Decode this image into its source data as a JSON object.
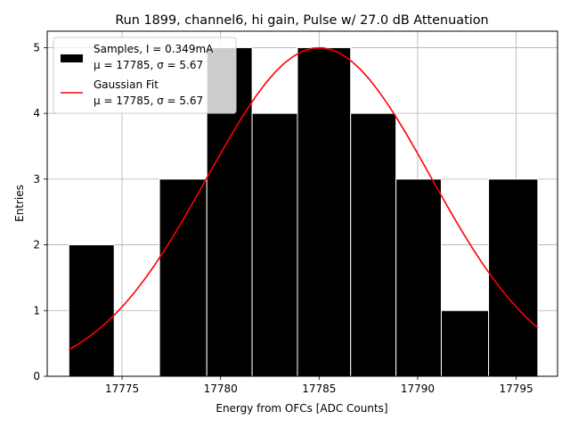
{
  "chart_data": {
    "type": "bar",
    "title": "Run 1899, channel6, hi gain, Pulse w/ 27.0 dB Attenuation",
    "xlabel": "Energy from OFCs [ADC Counts]",
    "ylabel": "Entries",
    "xlim": [
      17771.2,
      17797.1
    ],
    "ylim": [
      0,
      5.25
    ],
    "xticks": [
      17775,
      17780,
      17785,
      17790,
      17795
    ],
    "xtick_labels": [
      "17775",
      "17780",
      "17785",
      "17790",
      "17795"
    ],
    "yticks": [
      0,
      1,
      2,
      3,
      4,
      5
    ],
    "ytick_labels": [
      "0",
      "1",
      "2",
      "3",
      "4",
      "5"
    ],
    "grid": true,
    "legend_position": "top-left",
    "histogram": {
      "name": "Samples, I = 0.349mA",
      "name_line2": "μ = 17785, σ = 5.67",
      "color": "#000000",
      "edge_color": "#ffffff",
      "bins": [
        {
          "x0": 17772.3,
          "x1": 17774.6,
          "count": 2
        },
        {
          "x0": 17774.6,
          "x1": 17776.9,
          "count": 0
        },
        {
          "x0": 17776.9,
          "x1": 17779.3,
          "count": 3
        },
        {
          "x0": 17779.3,
          "x1": 17781.6,
          "count": 5
        },
        {
          "x0": 17781.6,
          "x1": 17783.9,
          "count": 4
        },
        {
          "x0": 17783.9,
          "x1": 17786.6,
          "count": 5
        },
        {
          "x0": 17786.6,
          "x1": 17788.9,
          "count": 4
        },
        {
          "x0": 17788.9,
          "x1": 17791.2,
          "count": 3
        },
        {
          "x0": 17791.2,
          "x1": 17793.6,
          "count": 1
        },
        {
          "x0": 17793.6,
          "x1": 17796.1,
          "count": 3
        }
      ]
    },
    "fit": {
      "name": "Gaussian Fit",
      "name_line2": "μ = 17785, σ = 5.67",
      "color": "#ff0000",
      "mu": 17785,
      "sigma": 5.67,
      "amplitude": 5.0,
      "x_start": 17772.3,
      "x_end": 17796.1
    }
  }
}
